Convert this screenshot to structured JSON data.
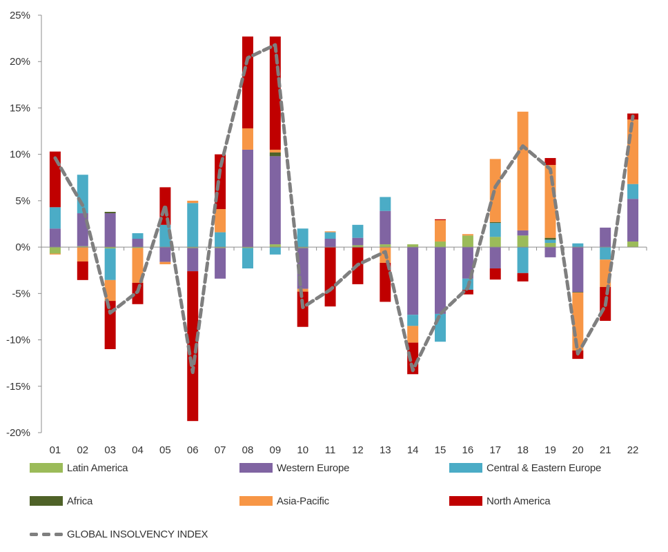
{
  "chart_data": {
    "type": "bar",
    "subtype": "stacked-bar-with-line",
    "title": "",
    "xlabel": "",
    "ylabel": "",
    "ylim": [
      -20,
      25
    ],
    "yticks": [
      25,
      20,
      15,
      10,
      5,
      0,
      -5,
      -10,
      -15,
      -20
    ],
    "ytick_labels": [
      "25%",
      "20%",
      "15%",
      "10%",
      "5%",
      "0%",
      "-5%",
      "-10%",
      "-15%",
      "-20%"
    ],
    "grid": false,
    "legend_position": "bottom",
    "categories": [
      "01",
      "02",
      "03",
      "04",
      "05",
      "06",
      "07",
      "08",
      "09",
      "10",
      "11",
      "12",
      "13",
      "14",
      "15",
      "16",
      "17",
      "18",
      "19",
      "20",
      "21",
      "22"
    ],
    "series": [
      {
        "name": "Latin America",
        "color": "#9BBB59",
        "values": [
          -0.7,
          0.1,
          -0.15,
          -0.1,
          0.0,
          -0.1,
          -0.1,
          -0.1,
          0.3,
          -0.1,
          0.0,
          0.2,
          0.3,
          0.3,
          0.6,
          1.25,
          1.1,
          1.25,
          0.45,
          0.0,
          0.0,
          0.6
        ]
      },
      {
        "name": "Western Europe",
        "color": "#8064A2",
        "values": [
          2.0,
          3.55,
          3.65,
          0.9,
          -1.6,
          -2.5,
          -3.3,
          10.5,
          9.5,
          -4.4,
          0.9,
          0.8,
          3.6,
          -7.3,
          -7.2,
          -3.4,
          -2.3,
          0.55,
          -1.1,
          -4.85,
          2.1,
          4.6
        ]
      },
      {
        "name": "Central & Eastern Europe",
        "color": "#4BACC6",
        "values": [
          2.3,
          4.15,
          -3.4,
          0.6,
          2.4,
          4.75,
          1.6,
          -2.2,
          -0.8,
          2.0,
          0.7,
          1.4,
          1.5,
          -1.2,
          -3.0,
          -1.2,
          1.5,
          -2.8,
          0.35,
          0.4,
          -1.35,
          1.6
        ]
      },
      {
        "name": "Africa",
        "color": "#4F6228",
        "values": [
          0.0,
          0.0,
          0.15,
          0.0,
          0.0,
          0.0,
          0.0,
          0.0,
          0.4,
          0.0,
          0.0,
          0.0,
          0.0,
          0.0,
          0.0,
          0.0,
          0.1,
          0.0,
          0.2,
          -0.05,
          0.0,
          0.0
        ]
      },
      {
        "name": "Asia-Pacific",
        "color": "#F79646",
        "values": [
          -0.1,
          -1.55,
          -2.25,
          -3.75,
          -0.25,
          0.25,
          2.5,
          2.3,
          0.3,
          -0.3,
          0.1,
          0.0,
          -1.7,
          -1.8,
          2.3,
          0.15,
          6.8,
          12.8,
          7.85,
          -6.25,
          -2.95,
          6.95
        ]
      },
      {
        "name": "North America",
        "color": "#C00000",
        "values": [
          6.0,
          -2.0,
          -5.2,
          -2.3,
          4.05,
          -16.15,
          5.9,
          9.9,
          12.2,
          -3.8,
          -6.4,
          -4.0,
          -4.2,
          -3.4,
          0.1,
          -0.5,
          -1.2,
          -0.9,
          0.75,
          -0.9,
          -3.65,
          0.65
        ]
      }
    ],
    "line_series": {
      "name": "GLOBAL INSOLVENCY INDEX",
      "color": "#7F7F7F",
      "style": "dashed",
      "values": [
        9.6,
        4.5,
        -7.1,
        -4.8,
        4.5,
        -13.5,
        8.5,
        20.4,
        21.8,
        -6.5,
        -4.6,
        -1.9,
        -0.5,
        -13.3,
        -7.2,
        -4.4,
        6.5,
        10.9,
        8.4,
        -11.5,
        -6.3,
        14.1
      ]
    }
  },
  "legend": {
    "items": [
      {
        "label": "Latin America",
        "color": "#9BBB59"
      },
      {
        "label": "Western Europe",
        "color": "#8064A2"
      },
      {
        "label": "Central & Eastern Europe",
        "color": "#4BACC6"
      },
      {
        "label": "Africa",
        "color": "#4F6228"
      },
      {
        "label": "Asia-Pacific",
        "color": "#F79646"
      },
      {
        "label": "North America",
        "color": "#C00000"
      }
    ],
    "line_label": "GLOBAL INSOLVENCY INDEX"
  }
}
